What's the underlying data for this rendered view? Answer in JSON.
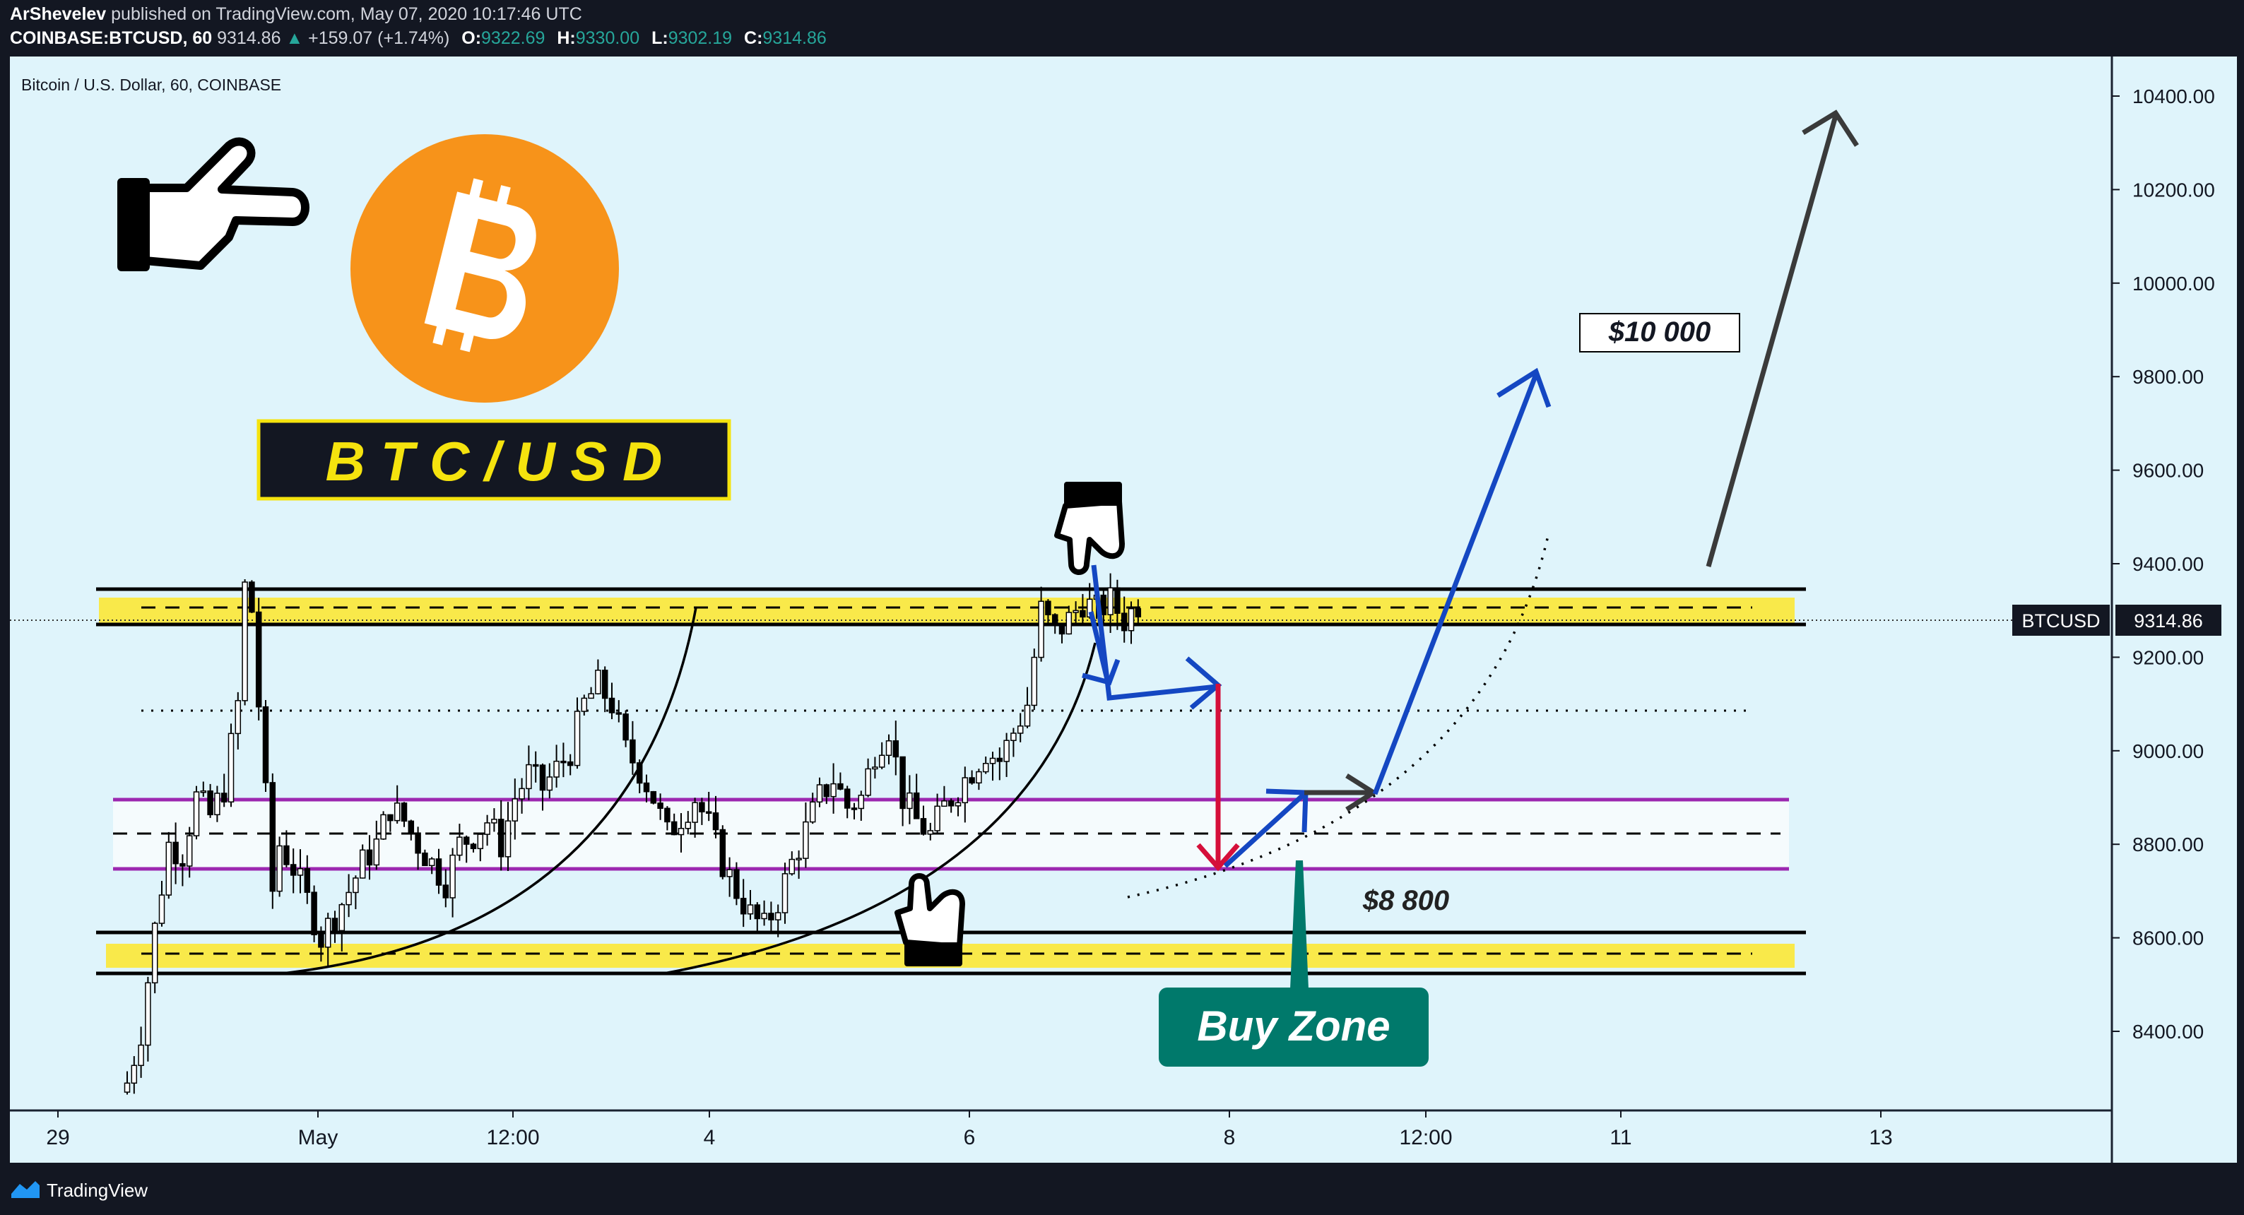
{
  "header": {
    "author": "ArShevelev",
    "published_text": "published on TradingView.com, May 07, 2020 10:17:46 UTC",
    "symbol_line": "COINBASE:BTCUSD, 60",
    "last_price": "9314.86",
    "change_arrow": "▲",
    "change": "+159.07 (+1.74%)",
    "o_label": "O:",
    "o_value": "9322.69",
    "h_label": "H:",
    "h_value": "9330.00",
    "l_label": "L:",
    "l_value": "9302.19",
    "c_label": "C:",
    "c_value": "9314.86"
  },
  "footer": {
    "brand": "TradingView"
  },
  "colors": {
    "background": "#dff4fb",
    "frame": "#131722",
    "up": "#ffffff",
    "down": "#000000",
    "resistance_fill": "#f9e94a",
    "buy_zone_line": "#9c27b0",
    "blue_arrow": "#1447c2",
    "red_arrow": "#d50f3a",
    "buy_zone_badge": "#00796b",
    "bitcoin_orange": "#f7931a"
  },
  "chart_data": {
    "type": "candlestick",
    "title": "Bitcoin / U.S. Dollar, 60, COINBASE",
    "symbol": "BTCUSD",
    "timeframe": "60",
    "y_axis_ticks": [
      8400,
      8600,
      8800,
      9000,
      9200,
      9400,
      9600,
      9800,
      10000,
      10200,
      10400
    ],
    "y_tick_labels": [
      "8400.00",
      "8600.00",
      "8800.00",
      "9000.00",
      "9200.00",
      "9400.00",
      "9600.00",
      "9800.00",
      "10000.00",
      "10200.00",
      "10400.00"
    ],
    "ylim": [
      8280,
      10600
    ],
    "x_tick_labels": [
      "29",
      "May",
      "12:00",
      "4",
      "6",
      "8",
      "12:00",
      "11",
      "13"
    ],
    "last_price_label": "BTCUSD",
    "last_price": "9314.86",
    "close_path": [
      [
        0,
        8290
      ],
      [
        2,
        8400
      ],
      [
        4,
        8620
      ],
      [
        6,
        8800
      ],
      [
        8,
        8780
      ],
      [
        10,
        8900
      ],
      [
        12,
        8860
      ],
      [
        14,
        8920
      ],
      [
        16,
        9100
      ],
      [
        17,
        9350
      ],
      [
        18,
        9300
      ],
      [
        19,
        9100
      ],
      [
        20,
        8900
      ],
      [
        21,
        8700
      ],
      [
        22,
        8800
      ],
      [
        24,
        8750
      ],
      [
        26,
        8680
      ],
      [
        28,
        8600
      ],
      [
        30,
        8650
      ],
      [
        32,
        8700
      ],
      [
        34,
        8760
      ],
      [
        36,
        8800
      ],
      [
        38,
        8880
      ],
      [
        40,
        8850
      ],
      [
        42,
        8800
      ],
      [
        44,
        8760
      ],
      [
        46,
        8720
      ],
      [
        48,
        8800
      ],
      [
        50,
        8820
      ],
      [
        52,
        8850
      ],
      [
        54,
        8800
      ],
      [
        56,
        8900
      ],
      [
        58,
        8950
      ],
      [
        60,
        8920
      ],
      [
        62,
        8960
      ],
      [
        64,
        9000
      ],
      [
        66,
        9100
      ],
      [
        68,
        9140
      ],
      [
        70,
        9100
      ],
      [
        72,
        9000
      ],
      [
        74,
        8960
      ],
      [
        76,
        8900
      ],
      [
        78,
        8820
      ],
      [
        80,
        8860
      ],
      [
        82,
        8900
      ],
      [
        84,
        8840
      ],
      [
        86,
        8760
      ],
      [
        88,
        8700
      ],
      [
        90,
        8650
      ],
      [
        92,
        8620
      ],
      [
        94,
        8680
      ],
      [
        96,
        8760
      ],
      [
        98,
        8830
      ],
      [
        100,
        8900
      ],
      [
        102,
        8940
      ],
      [
        104,
        8880
      ],
      [
        106,
        8900
      ],
      [
        108,
        9000
      ],
      [
        110,
        9050
      ],
      [
        112,
        8900
      ],
      [
        114,
        8850
      ],
      [
        116,
        8820
      ],
      [
        118,
        8880
      ],
      [
        120,
        8920
      ],
      [
        122,
        8960
      ],
      [
        124,
        9000
      ],
      [
        126,
        8980
      ],
      [
        128,
        9040
      ],
      [
        130,
        9100
      ],
      [
        132,
        9300
      ],
      [
        134,
        9250
      ],
      [
        136,
        9280
      ],
      [
        138,
        9320
      ],
      [
        140,
        9300
      ],
      [
        142,
        9320
      ],
      [
        144,
        9280
      ],
      [
        146,
        9315
      ]
    ],
    "annotations": {
      "resistance_band": [
        9300,
        9380
      ],
      "resistance_mid": 9340,
      "support_band": [
        8565,
        8650
      ],
      "support_mid": 8605,
      "buy_zone_band": [
        8785,
        8935
      ],
      "buy_zone_mid": 8860,
      "dotted_level": 9120,
      "price_label_10000": "$10 000",
      "price_label_8800": "$8 800",
      "buy_zone_label": "Buy Zone",
      "pair_label": "B T C / U S D"
    }
  }
}
